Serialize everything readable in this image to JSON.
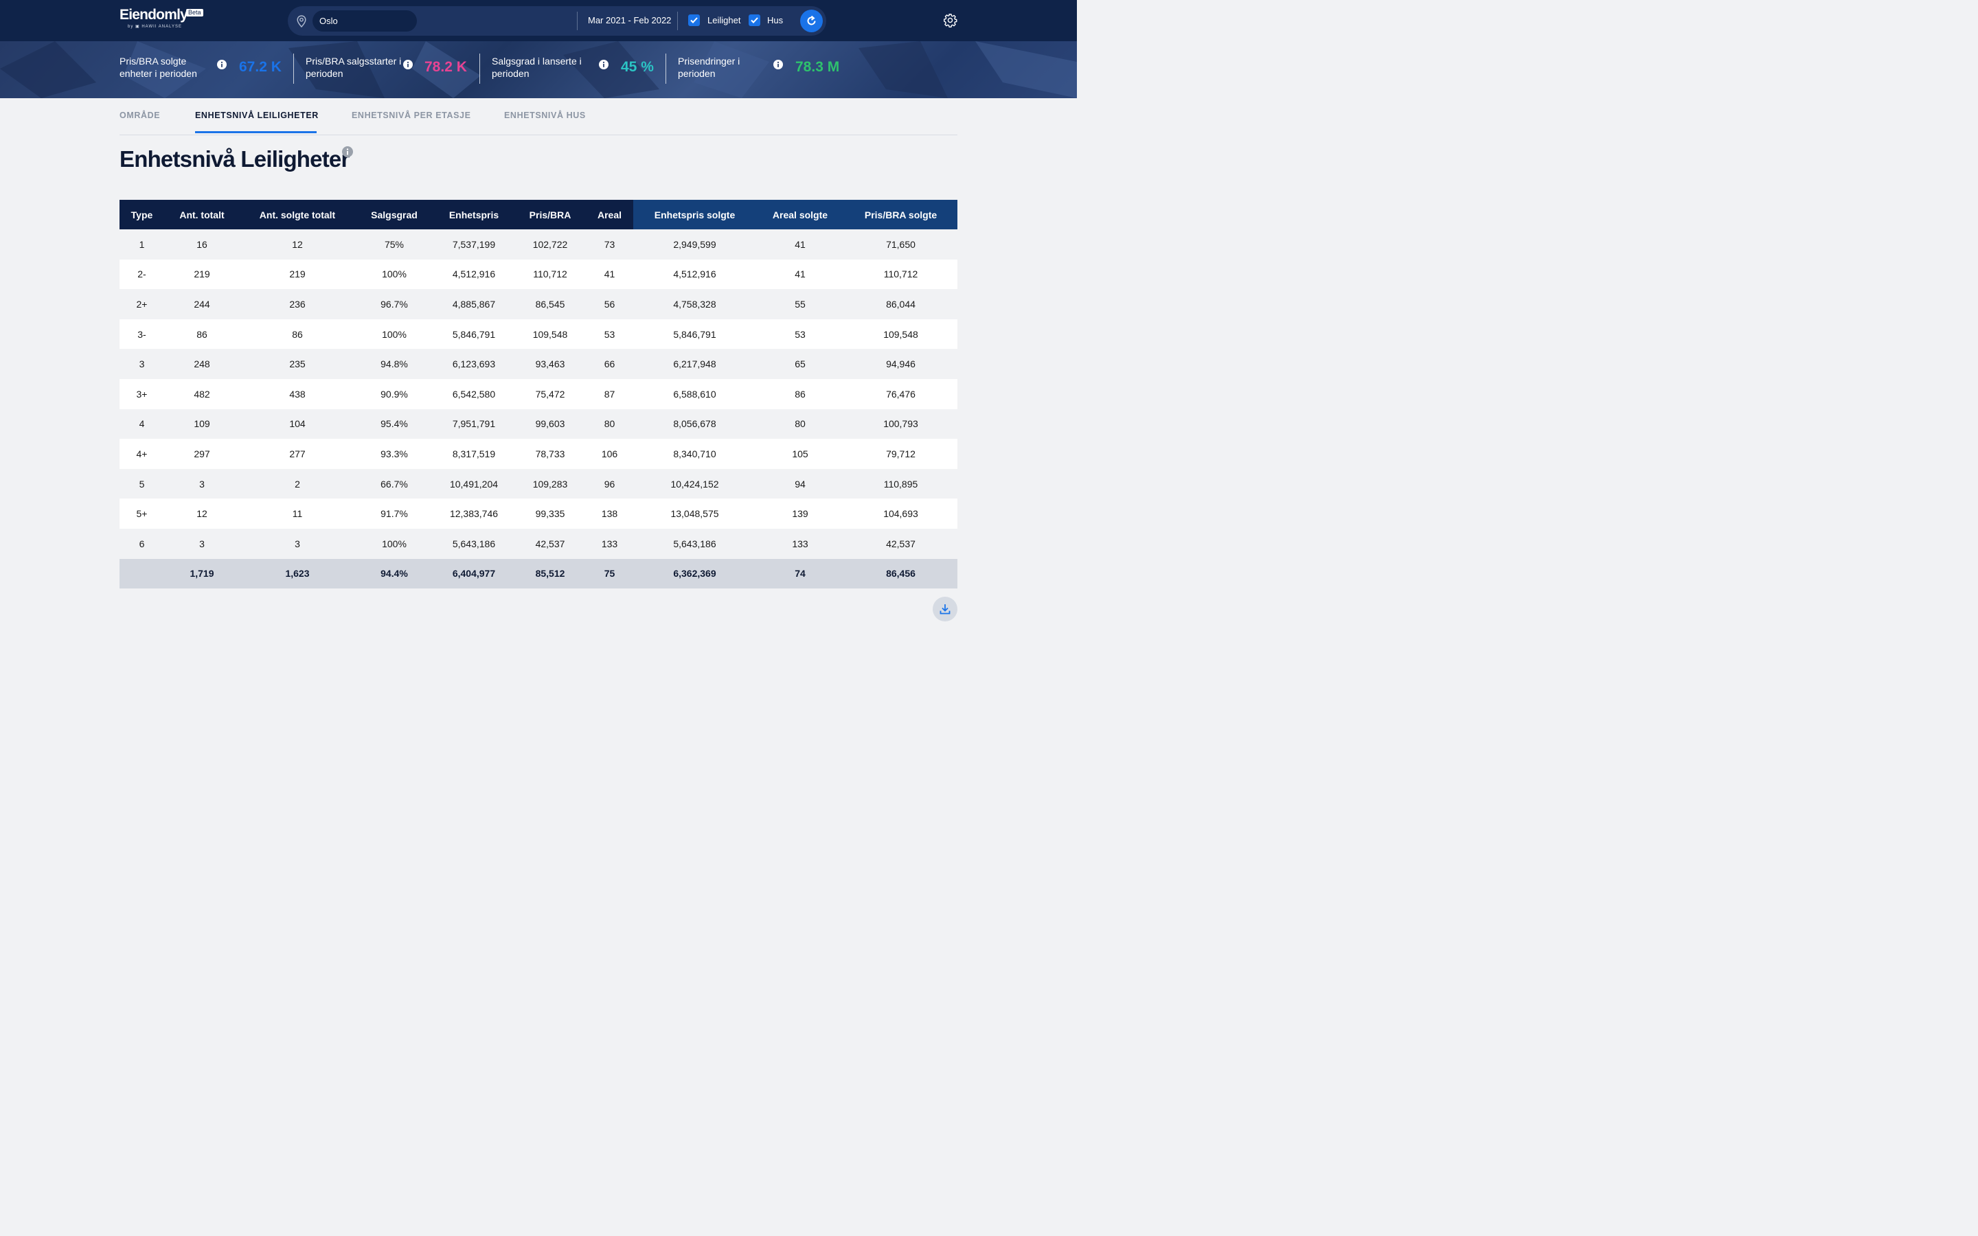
{
  "app": {
    "logo_name": "Eiendomly",
    "logo_badge": "Beta",
    "logo_sub": "by ▣ HAWII ANALYSE"
  },
  "search": {
    "location_value": "Oslo",
    "date_range": "Mar 2021 - Feb 2022",
    "filters": [
      {
        "label": "Leilighet",
        "checked": true
      },
      {
        "label": "Hus",
        "checked": true
      }
    ]
  },
  "kpis": [
    {
      "label": "Pris/BRA solgte enheter i perioden",
      "value": "67.2 K",
      "color": "#1a73e8"
    },
    {
      "label": "Pris/BRA salgsstarter i perioden",
      "value": "78.2 K",
      "color": "#e84393"
    },
    {
      "label": "Salgsgrad i lanserte i perioden",
      "value": "45 %",
      "color": "#2bc4c4"
    },
    {
      "label": "Prisendringer i perioden",
      "value": "78.3 M",
      "color": "#2ec26d"
    }
  ],
  "tabs": [
    {
      "label": "OMRÅDE",
      "active": false
    },
    {
      "label": "ENHETSNIVÅ LEILIGHETER",
      "active": true
    },
    {
      "label": "ENHETSNIVÅ PER ETASJE",
      "active": false
    },
    {
      "label": "ENHETSNIVÅ HUS",
      "active": false
    }
  ],
  "page_title": "Enhetsnivå Leiligheter",
  "table": {
    "columns": [
      "Type",
      "Ant. totalt",
      "Ant. solgte totalt",
      "Salgsgrad",
      "Enhetspris",
      "Pris/BRA",
      "Areal",
      "Enhetspris solgte",
      "Areal solgte",
      "Pris/BRA solgte"
    ],
    "rows": [
      [
        "1",
        "16",
        "12",
        "75%",
        "7,537,199",
        "102,722",
        "73",
        "2,949,599",
        "41",
        "71,650"
      ],
      [
        "2-",
        "219",
        "219",
        "100%",
        "4,512,916",
        "110,712",
        "41",
        "4,512,916",
        "41",
        "110,712"
      ],
      [
        "2+",
        "244",
        "236",
        "96.7%",
        "4,885,867",
        "86,545",
        "56",
        "4,758,328",
        "55",
        "86,044"
      ],
      [
        "3-",
        "86",
        "86",
        "100%",
        "5,846,791",
        "109,548",
        "53",
        "5,846,791",
        "53",
        "109,548"
      ],
      [
        "3",
        "248",
        "235",
        "94.8%",
        "6,123,693",
        "93,463",
        "66",
        "6,217,948",
        "65",
        "94,946"
      ],
      [
        "3+",
        "482",
        "438",
        "90.9%",
        "6,542,580",
        "75,472",
        "87",
        "6,588,610",
        "86",
        "76,476"
      ],
      [
        "4",
        "109",
        "104",
        "95.4%",
        "7,951,791",
        "99,603",
        "80",
        "8,056,678",
        "80",
        "100,793"
      ],
      [
        "4+",
        "297",
        "277",
        "93.3%",
        "8,317,519",
        "78,733",
        "106",
        "8,340,710",
        "105",
        "79,712"
      ],
      [
        "5",
        "3",
        "2",
        "66.7%",
        "10,491,204",
        "109,283",
        "96",
        "10,424,152",
        "94",
        "110,895"
      ],
      [
        "5+",
        "12",
        "11",
        "91.7%",
        "12,383,746",
        "99,335",
        "138",
        "13,048,575",
        "139",
        "104,693"
      ],
      [
        "6",
        "3",
        "3",
        "100%",
        "5,643,186",
        "42,537",
        "133",
        "5,643,186",
        "133",
        "42,537"
      ]
    ],
    "totals": [
      "",
      "1,719",
      "1,623",
      "94.4%",
      "6,404,977",
      "85,512",
      "75",
      "6,362,369",
      "74",
      "86,456"
    ]
  }
}
